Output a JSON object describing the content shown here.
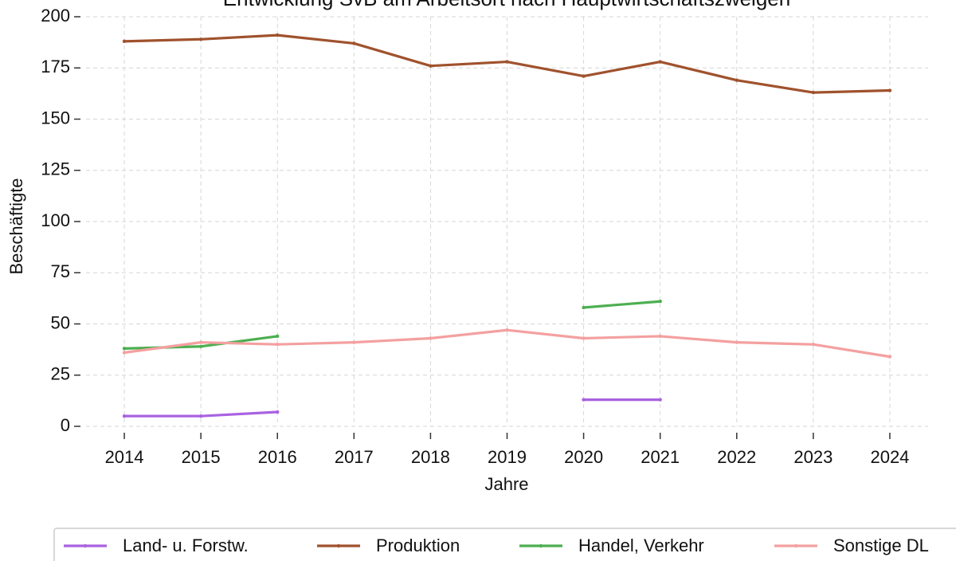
{
  "chart_data": {
    "type": "line",
    "title": "Entwicklung SvB am Arbeitsort nach Hauptwirtschaftszweigen",
    "xlabel": "Jahre",
    "ylabel": "Beschäftigte",
    "x": [
      2014,
      2015,
      2016,
      2017,
      2018,
      2019,
      2020,
      2021,
      2022,
      2023,
      2024
    ],
    "xlim": [
      2013.5,
      2024.5
    ],
    "xticks": [
      2014,
      2015,
      2016,
      2017,
      2018,
      2019,
      2020,
      2021,
      2022,
      2023,
      2024
    ],
    "ylim": [
      0,
      200
    ],
    "yticks": [
      0,
      25,
      50,
      75,
      100,
      125,
      150,
      175,
      200
    ],
    "grid": true,
    "legend": "bottom",
    "series": [
      {
        "name": "Land- u. Forstw.",
        "color": "#a962e0",
        "values": [
          5,
          5,
          7,
          null,
          null,
          null,
          13,
          13,
          null,
          null,
          null
        ]
      },
      {
        "name": "Produktion",
        "color": "#a0522d",
        "values": [
          188,
          189,
          191,
          187,
          176,
          178,
          171,
          178,
          169,
          163,
          164
        ]
      },
      {
        "name": "Handel, Verkehr",
        "color": "#4caf50",
        "values": [
          38,
          39,
          44,
          null,
          null,
          null,
          58,
          61,
          null,
          null,
          null
        ]
      },
      {
        "name": "Sonstige DL",
        "color": "#f4a0a0",
        "values": [
          36,
          41,
          40,
          41,
          43,
          47,
          43,
          44,
          41,
          40,
          34
        ]
      }
    ]
  }
}
